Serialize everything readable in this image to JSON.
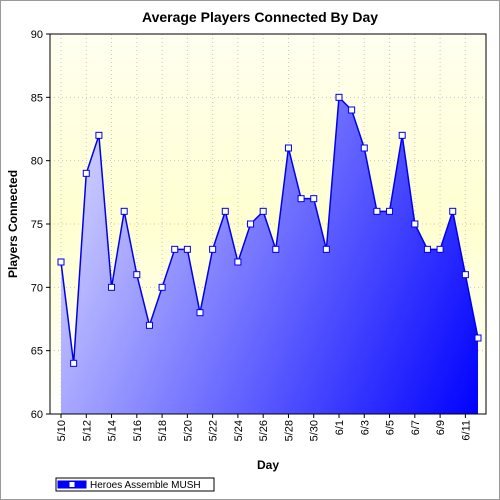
{
  "chart_data": {
    "type": "area",
    "title": "Average Players Connected By Day",
    "xlabel": "Day",
    "ylabel": "Players Connected",
    "ylim": [
      60,
      90
    ],
    "yticks": [
      60,
      65,
      70,
      75,
      80,
      85,
      90
    ],
    "grid": true,
    "legend_position": "bottom-left",
    "x": [
      "5/10",
      "5/11",
      "5/12",
      "5/13",
      "5/14",
      "5/15",
      "5/16",
      "5/17",
      "5/18",
      "5/19",
      "5/20",
      "5/21",
      "5/22",
      "5/23",
      "5/24",
      "5/25",
      "5/26",
      "5/27",
      "5/28",
      "5/29",
      "5/30",
      "5/31",
      "6/1",
      "6/2",
      "6/3",
      "6/4",
      "6/5",
      "6/6",
      "6/7",
      "6/8",
      "6/9",
      "6/10",
      "6/11",
      "6/12"
    ],
    "tick_labels": [
      "5/10",
      "5/12",
      "5/14",
      "5/16",
      "5/18",
      "5/20",
      "5/22",
      "5/24",
      "5/26",
      "5/28",
      "5/30",
      "6/1",
      "6/3",
      "6/5",
      "6/7",
      "6/9",
      "6/11"
    ],
    "series": [
      {
        "name": "Heroes Assemble MUSH",
        "color": "#0000ee",
        "values": [
          72,
          64,
          79,
          82,
          70,
          76,
          71,
          67,
          70,
          73,
          73,
          68,
          73,
          76,
          72,
          75,
          76,
          73,
          81,
          77,
          77,
          73,
          85,
          84,
          81,
          76,
          76,
          82,
          75,
          73,
          73,
          76,
          71,
          66
        ]
      }
    ],
    "colors": {
      "plot_background_top": "#ffffd6",
      "area_light": "#c8c8ff",
      "area_dark": "#0000ff"
    }
  }
}
